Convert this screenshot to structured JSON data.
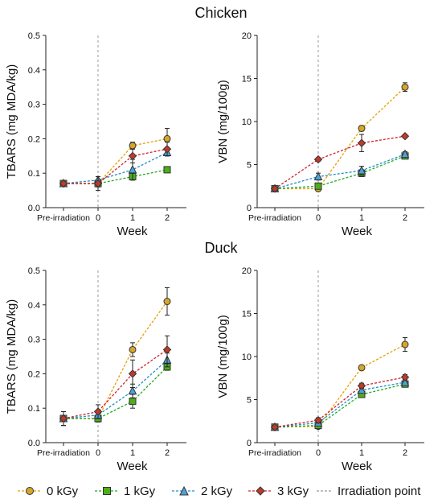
{
  "sections": {
    "top": "Chicken",
    "bottom": "Duck"
  },
  "legend": {
    "items": [
      {
        "label": "0 kGy",
        "color": "#E69F00",
        "fill": "#D4A72C",
        "marker": "circle"
      },
      {
        "label": "1 kGy",
        "color": "#22AA22",
        "fill": "#4CAF1A",
        "marker": "square"
      },
      {
        "label": "2 kGy",
        "color": "#1E90C8",
        "fill": "#4DA3D9",
        "marker": "triangle"
      },
      {
        "label": "3 kGy",
        "color": "#D0202A",
        "fill": "#C0392B",
        "marker": "diamond"
      }
    ],
    "irradiation_label": "Irradiation point"
  },
  "chart_data": [
    {
      "id": "chicken-tbars",
      "type": "line",
      "xlabel": "Week",
      "ylabel": "TBARS (mg MDA/kg)",
      "categories": [
        "Pre-irradiation",
        "0",
        "1",
        "2"
      ],
      "ylim": [
        0,
        0.5
      ],
      "yticks": [
        "0.0",
        "0.1",
        "0.2",
        "0.3",
        "0.4",
        "0.5"
      ],
      "vline_at": "0",
      "series": [
        {
          "name": "0 kGy",
          "values": [
            0.07,
            0.07,
            0.18,
            0.2
          ],
          "errors": [
            0.008,
            0.01,
            0.01,
            0.03
          ]
        },
        {
          "name": "1 kGy",
          "values": [
            0.07,
            0.07,
            0.09,
            0.11
          ],
          "errors": [
            0.005,
            0.008,
            0.01,
            0.008
          ]
        },
        {
          "name": "2 kGy",
          "values": [
            0.07,
            0.08,
            0.11,
            0.16
          ],
          "errors": [
            0.005,
            0.01,
            0.03,
            0.01
          ]
        },
        {
          "name": "3 kGy",
          "values": [
            0.07,
            0.07,
            0.15,
            0.17
          ],
          "errors": [
            0.005,
            0.02,
            0.02,
            0.02
          ]
        }
      ]
    },
    {
      "id": "chicken-vbn",
      "type": "line",
      "xlabel": "Week",
      "ylabel": "VBN (mg/100g)",
      "categories": [
        "Pre-irradiation",
        "0",
        "1",
        "2"
      ],
      "ylim": [
        0,
        20
      ],
      "yticks": [
        "0",
        "5",
        "10",
        "15",
        "20"
      ],
      "vline_at": "0",
      "series": [
        {
          "name": "0 kGy",
          "values": [
            2.2,
            2.2,
            9.2,
            14.0
          ],
          "errors": [
            0.2,
            0.3,
            0.3,
            0.5
          ]
        },
        {
          "name": "1 kGy",
          "values": [
            2.2,
            2.5,
            4.0,
            6.0
          ],
          "errors": [
            0.2,
            0.2,
            0.4,
            0.3
          ]
        },
        {
          "name": "2 kGy",
          "values": [
            2.2,
            3.6,
            4.3,
            6.2
          ],
          "errors": [
            0.2,
            0.4,
            0.5,
            0.3
          ]
        },
        {
          "name": "3 kGy",
          "values": [
            2.2,
            5.6,
            7.5,
            8.3
          ],
          "errors": [
            0.2,
            0.2,
            1.0,
            0.2
          ]
        }
      ]
    },
    {
      "id": "duck-tbars",
      "type": "line",
      "xlabel": "Week",
      "ylabel": "TBARS (mg MDA/kg)",
      "categories": [
        "Pre-irradiation",
        "0",
        "1",
        "2"
      ],
      "ylim": [
        0,
        0.5
      ],
      "yticks": [
        "0.0",
        "0.1",
        "0.2",
        "0.3",
        "0.4",
        "0.5"
      ],
      "vline_at": "0",
      "series": [
        {
          "name": "0 kGy",
          "values": [
            0.07,
            0.07,
            0.27,
            0.41
          ],
          "errors": [
            0.02,
            0.01,
            0.02,
            0.04
          ]
        },
        {
          "name": "1 kGy",
          "values": [
            0.07,
            0.07,
            0.12,
            0.22
          ],
          "errors": [
            0.02,
            0.01,
            0.02,
            0.01
          ]
        },
        {
          "name": "2 kGy",
          "values": [
            0.07,
            0.08,
            0.15,
            0.24
          ],
          "errors": [
            0.02,
            0.01,
            0.02,
            0.02
          ]
        },
        {
          "name": "3 kGy",
          "values": [
            0.07,
            0.09,
            0.2,
            0.27
          ],
          "errors": [
            0.02,
            0.02,
            0.04,
            0.04
          ]
        }
      ]
    },
    {
      "id": "duck-vbn",
      "type": "line",
      "xlabel": "Week",
      "ylabel": "VBN (mg/100g)",
      "categories": [
        "Pre-irradiation",
        "0",
        "1",
        "2"
      ],
      "ylim": [
        0,
        20
      ],
      "yticks": [
        "0",
        "5",
        "10",
        "15",
        "20"
      ],
      "vline_at": "0",
      "series": [
        {
          "name": "0 kGy",
          "values": [
            1.8,
            1.9,
            8.7,
            11.4
          ],
          "errors": [
            0.2,
            0.2,
            0.2,
            0.8
          ]
        },
        {
          "name": "1 kGy",
          "values": [
            1.8,
            2.0,
            5.6,
            6.8
          ],
          "errors": [
            0.2,
            0.2,
            0.3,
            0.3
          ]
        },
        {
          "name": "2 kGy",
          "values": [
            1.8,
            2.3,
            6.1,
            7.0
          ],
          "errors": [
            0.2,
            0.3,
            0.3,
            0.3
          ]
        },
        {
          "name": "3 kGy",
          "values": [
            1.8,
            2.6,
            6.6,
            7.6
          ],
          "errors": [
            0.2,
            0.3,
            0.3,
            0.3
          ]
        }
      ]
    }
  ]
}
